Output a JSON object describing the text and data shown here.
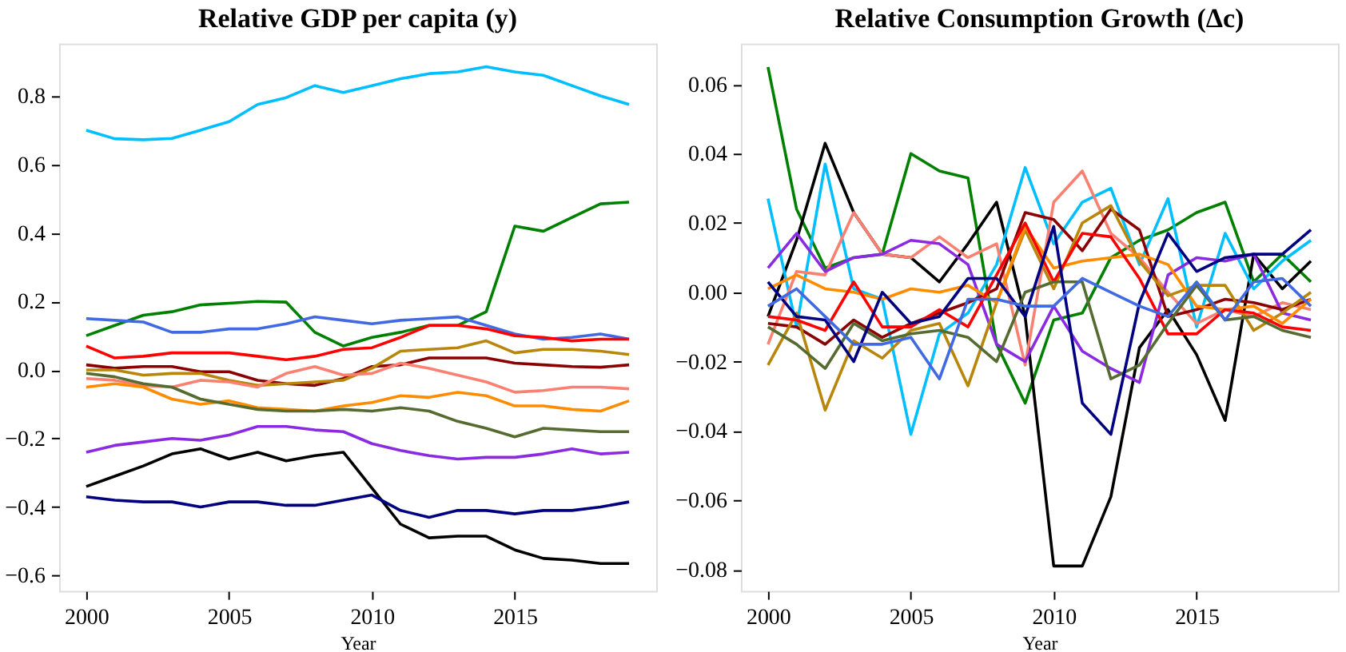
{
  "chart_data": [
    {
      "type": "line",
      "title": "Relative GDP per capita (y)",
      "xlabel": "Year",
      "x": [
        2000,
        2001,
        2002,
        2003,
        2004,
        2005,
        2006,
        2007,
        2008,
        2009,
        2010,
        2011,
        2012,
        2013,
        2014,
        2015,
        2016,
        2017,
        2018,
        2019
      ],
      "xlim": [
        1999.05,
        2019.95
      ],
      "xticks": [
        2000,
        2005,
        2010,
        2015
      ],
      "ylim": [
        -0.645,
        0.953
      ],
      "yticks": [
        {
          "value": -0.6,
          "label": "−0.6"
        },
        {
          "value": -0.4,
          "label": "−0.4"
        },
        {
          "value": -0.2,
          "label": "−0.2"
        },
        {
          "value": 0,
          "label": "0.0"
        },
        {
          "value": 0.2,
          "label": "0.2"
        },
        {
          "value": 0.4,
          "label": "0.4"
        },
        {
          "value": 0.6,
          "label": "0.6"
        },
        {
          "value": 0.8,
          "label": "0.8"
        }
      ],
      "series": [
        {
          "color": "#00bfff",
          "values": [
            0.7,
            0.675,
            0.672,
            0.676,
            0.7,
            0.725,
            0.775,
            0.795,
            0.83,
            0.81,
            0.83,
            0.85,
            0.865,
            0.87,
            0.885,
            0.87,
            0.86,
            0.83,
            0.8,
            0.775
          ]
        },
        {
          "color": "#008000",
          "values": [
            0.1,
            0.13,
            0.16,
            0.17,
            0.19,
            0.195,
            0.2,
            0.198,
            0.11,
            0.07,
            0.095,
            0.11,
            0.13,
            0.13,
            0.17,
            0.42,
            0.405,
            0.445,
            0.485,
            0.49
          ]
        },
        {
          "color": "#4169e1",
          "values": [
            0.15,
            0.145,
            0.14,
            0.11,
            0.11,
            0.12,
            0.12,
            0.135,
            0.155,
            0.145,
            0.135,
            0.145,
            0.15,
            0.155,
            0.13,
            0.105,
            0.09,
            0.095,
            0.105,
            0.09
          ]
        },
        {
          "color": "#ff0000",
          "values": [
            0.07,
            0.035,
            0.04,
            0.05,
            0.05,
            0.05,
            0.04,
            0.03,
            0.04,
            0.06,
            0.065,
            0.095,
            0.13,
            0.13,
            0.12,
            0.1,
            0.095,
            0.085,
            0.09,
            0.09
          ]
        },
        {
          "color": "#8b0000",
          "values": [
            0.015,
            0.005,
            0.01,
            0.01,
            -0.005,
            -0.005,
            -0.03,
            -0.04,
            -0.045,
            -0.025,
            0.01,
            0.015,
            0.035,
            0.035,
            0.035,
            0.02,
            0.015,
            0.01,
            0.008,
            0.015
          ]
        },
        {
          "color": "#b8860b",
          "values": [
            0.0,
            0.0,
            -0.015,
            -0.01,
            -0.01,
            -0.03,
            -0.045,
            -0.04,
            -0.035,
            -0.03,
            0.005,
            0.055,
            0.06,
            0.065,
            0.085,
            0.05,
            0.06,
            0.06,
            0.055,
            0.045
          ]
        },
        {
          "color": "#fa8072",
          "values": [
            -0.025,
            -0.03,
            -0.045,
            -0.05,
            -0.03,
            -0.035,
            -0.05,
            -0.01,
            0.01,
            -0.015,
            -0.01,
            0.02,
            0.005,
            -0.015,
            -0.035,
            -0.065,
            -0.06,
            -0.05,
            -0.05,
            -0.055
          ]
        },
        {
          "color": "#ff8c00",
          "values": [
            -0.05,
            -0.04,
            -0.05,
            -0.085,
            -0.1,
            -0.09,
            -0.11,
            -0.115,
            -0.12,
            -0.105,
            -0.095,
            -0.075,
            -0.08,
            -0.065,
            -0.075,
            -0.105,
            -0.105,
            -0.115,
            -0.12,
            -0.09
          ]
        },
        {
          "color": "#556b2f",
          "values": [
            -0.01,
            -0.02,
            -0.04,
            -0.05,
            -0.085,
            -0.1,
            -0.115,
            -0.12,
            -0.12,
            -0.115,
            -0.12,
            -0.11,
            -0.12,
            -0.15,
            -0.17,
            -0.195,
            -0.17,
            -0.175,
            -0.18,
            -0.18
          ]
        },
        {
          "color": "#8a2be2",
          "values": [
            -0.24,
            -0.22,
            -0.21,
            -0.2,
            -0.205,
            -0.19,
            -0.165,
            -0.165,
            -0.175,
            -0.18,
            -0.215,
            -0.235,
            -0.25,
            -0.26,
            -0.255,
            -0.255,
            -0.245,
            -0.23,
            -0.245,
            -0.24
          ]
        },
        {
          "color": "#000000",
          "values": [
            -0.34,
            -0.31,
            -0.28,
            -0.245,
            -0.23,
            -0.26,
            -0.24,
            -0.265,
            -0.25,
            -0.24,
            -0.345,
            -0.45,
            -0.49,
            -0.485,
            -0.485,
            -0.525,
            -0.55,
            -0.555,
            -0.565,
            -0.565
          ]
        },
        {
          "color": "#000080",
          "values": [
            -0.37,
            -0.38,
            -0.385,
            -0.385,
            -0.4,
            -0.385,
            -0.385,
            -0.395,
            -0.395,
            -0.38,
            -0.365,
            -0.41,
            -0.43,
            -0.41,
            -0.41,
            -0.42,
            -0.41,
            -0.41,
            -0.4,
            -0.385
          ]
        }
      ]
    },
    {
      "type": "line",
      "title": "Relative Consumption Growth (Δc)",
      "xlabel": "Year",
      "x": [
        2000,
        2001,
        2002,
        2003,
        2004,
        2005,
        2006,
        2007,
        2008,
        2009,
        2010,
        2011,
        2012,
        2013,
        2014,
        2015,
        2016,
        2017,
        2018,
        2019
      ],
      "xlim": [
        1999.05,
        2019.95
      ],
      "xticks": [
        2000,
        2005,
        2010,
        2015
      ],
      "ylim": [
        -0.0862,
        0.0718
      ],
      "yticks": [
        {
          "value": -0.08,
          "label": "−0.08"
        },
        {
          "value": -0.06,
          "label": "−0.06"
        },
        {
          "value": -0.04,
          "label": "−0.04"
        },
        {
          "value": -0.02,
          "label": "−0.02"
        },
        {
          "value": 0,
          "label": "0.00"
        },
        {
          "value": 0.02,
          "label": "0.02"
        },
        {
          "value": 0.04,
          "label": "0.04"
        },
        {
          "value": 0.06,
          "label": "0.06"
        }
      ],
      "series": [
        {
          "color": "#008000",
          "values": [
            0.065,
            0.024,
            0.007,
            0.01,
            0.011,
            0.04,
            0.035,
            0.033,
            -0.015,
            -0.032,
            -0.008,
            -0.006,
            0.01,
            0.015,
            0.018,
            0.023,
            0.026,
            0.003,
            0.011,
            0.003
          ]
        },
        {
          "color": "#000000",
          "values": [
            -0.007,
            0.015,
            0.043,
            0.023,
            0.011,
            0.01,
            0.003,
            0.014,
            0.026,
            -0.007,
            -0.079,
            -0.079,
            -0.059,
            -0.016,
            -0.005,
            -0.018,
            -0.037,
            0.011,
            0.001,
            0.009
          ]
        },
        {
          "color": "#00bfff",
          "values": [
            0.027,
            -0.01,
            0.037,
            0.001,
            -0.002,
            -0.041,
            -0.012,
            -0.006,
            0.008,
            0.036,
            0.014,
            0.026,
            0.03,
            0.008,
            0.027,
            -0.01,
            0.017,
            0.001,
            0.009,
            0.015
          ]
        },
        {
          "color": "#fa8072",
          "values": [
            -0.015,
            0.006,
            0.005,
            0.023,
            0.011,
            0.01,
            0.016,
            0.01,
            0.014,
            -0.021,
            0.026,
            0.035,
            0.017,
            0.01,
            0.0,
            -0.009,
            -0.005,
            -0.007,
            -0.003,
            -0.005
          ]
        },
        {
          "color": "#8a2be2",
          "values": [
            0.007,
            0.017,
            0.006,
            0.01,
            0.011,
            0.015,
            0.014,
            0.008,
            -0.015,
            -0.02,
            -0.004,
            -0.017,
            -0.022,
            -0.026,
            0.005,
            0.01,
            0.009,
            0.011,
            -0.006,
            -0.008
          ]
        },
        {
          "color": "#8b0000",
          "values": [
            -0.009,
            -0.01,
            -0.015,
            -0.008,
            -0.013,
            -0.009,
            -0.006,
            -0.003,
            0.001,
            0.023,
            0.021,
            0.012,
            0.024,
            0.018,
            -0.007,
            -0.005,
            -0.002,
            -0.003,
            -0.005,
            -0.002
          ]
        },
        {
          "color": "#b8860b",
          "values": [
            -0.021,
            -0.006,
            -0.034,
            -0.014,
            -0.019,
            -0.011,
            -0.009,
            -0.027,
            -0.003,
            0.018,
            0.001,
            0.02,
            0.025,
            0.009,
            -0.001,
            0.002,
            0.002,
            -0.011,
            -0.006,
            0.0
          ]
        },
        {
          "color": "#ff8c00",
          "values": [
            0.001,
            0.005,
            0.001,
            0.0,
            -0.002,
            0.001,
            0.0,
            0.002,
            -0.003,
            0.019,
            0.007,
            0.009,
            0.01,
            0.011,
            0.008,
            -0.004,
            -0.005,
            -0.004,
            -0.009,
            -0.002
          ]
        },
        {
          "color": "#ff0000",
          "values": [
            -0.007,
            -0.008,
            -0.011,
            0.003,
            -0.01,
            -0.01,
            -0.005,
            -0.01,
            0.005,
            0.02,
            0.003,
            0.017,
            0.016,
            0.004,
            -0.012,
            -0.012,
            -0.005,
            -0.006,
            -0.01,
            -0.011
          ]
        },
        {
          "color": "#556b2f",
          "values": [
            -0.01,
            -0.015,
            -0.022,
            -0.009,
            -0.014,
            -0.012,
            -0.011,
            -0.013,
            -0.02,
            0.0,
            0.003,
            0.003,
            -0.025,
            -0.021,
            -0.009,
            0.002,
            -0.008,
            -0.007,
            -0.011,
            -0.013
          ]
        },
        {
          "color": "#000080",
          "values": [
            0.003,
            -0.007,
            -0.008,
            -0.02,
            0.0,
            -0.009,
            -0.007,
            0.004,
            0.004,
            -0.007,
            0.019,
            -0.032,
            -0.041,
            -0.003,
            0.017,
            0.006,
            0.01,
            0.011,
            0.011,
            0.018
          ]
        },
        {
          "color": "#4169e1",
          "values": [
            -0.004,
            0.001,
            -0.007,
            -0.015,
            -0.015,
            -0.013,
            -0.025,
            -0.002,
            -0.002,
            -0.004,
            -0.004,
            0.004,
            0.0,
            -0.004,
            -0.007,
            0.003,
            -0.008,
            0.003,
            0.004,
            -0.004
          ]
        }
      ]
    }
  ]
}
